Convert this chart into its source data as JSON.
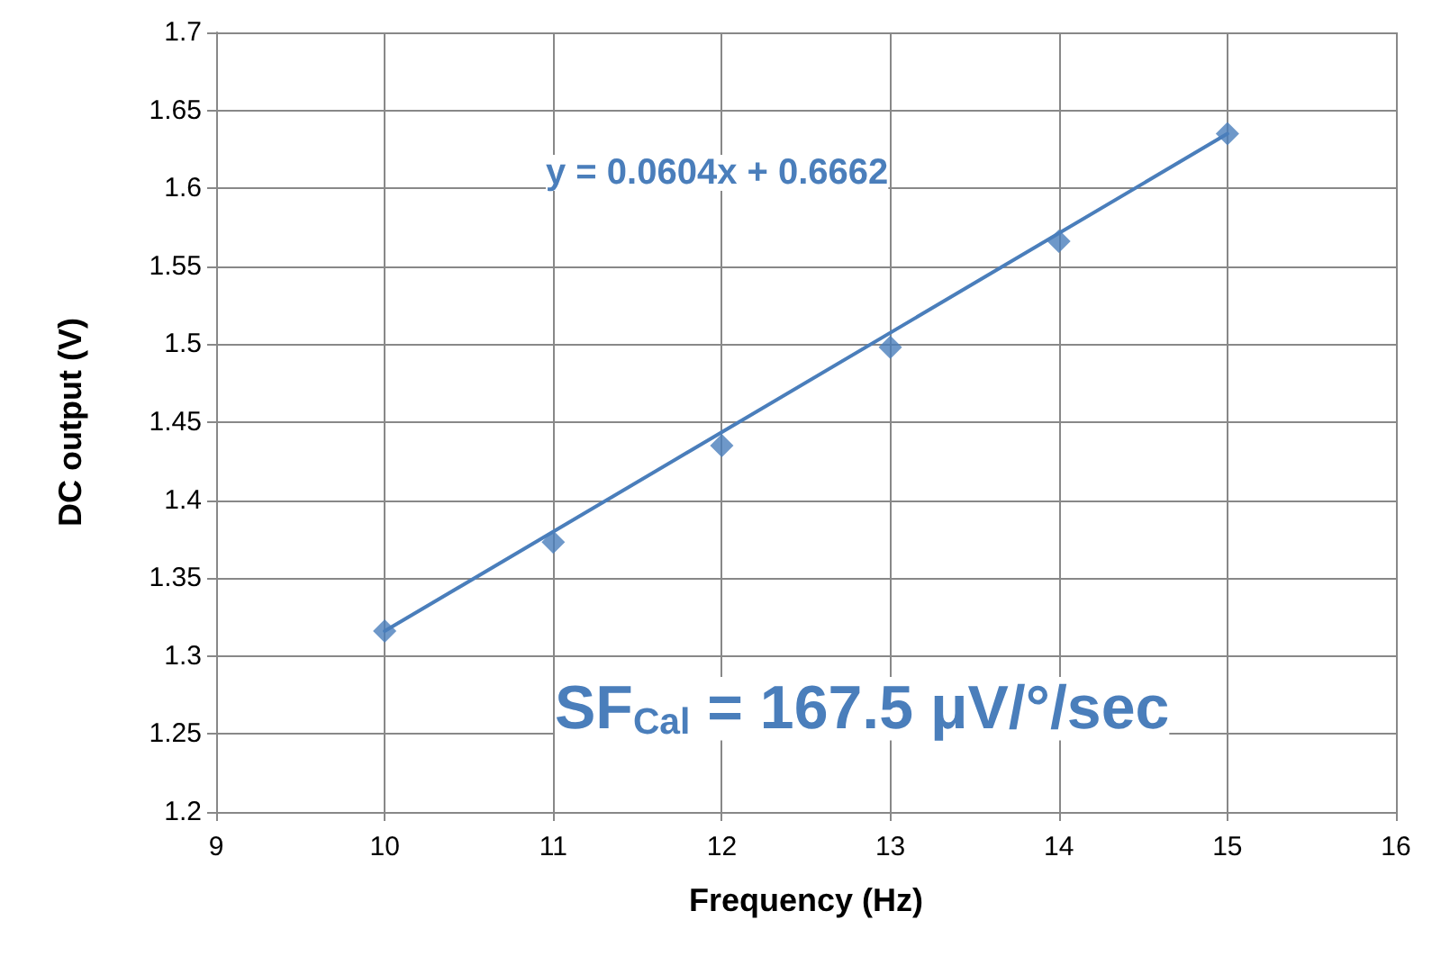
{
  "chart_data": {
    "type": "scatter",
    "xlabel": "Frequency (Hz)",
    "ylabel": "DC output (V)",
    "x": [
      10,
      11,
      12,
      13,
      14,
      15
    ],
    "series": [
      {
        "color": "#4a7ebb",
        "values": [
          1.316,
          1.373,
          1.435,
          1.498,
          1.566,
          1.635
        ],
        "marker": "diamond"
      },
      {
        "type": "line",
        "color": "#4a7ebb",
        "x": [
          10,
          15
        ],
        "values": [
          1.316,
          1.635
        ],
        "marker": "none"
      }
    ],
    "xlim": [
      9,
      16
    ],
    "xticks": [
      9,
      10,
      11,
      12,
      13,
      14,
      15,
      16
    ],
    "ylim": [
      1.2,
      1.7
    ],
    "yticks": [
      1.2,
      1.25,
      1.3,
      1.35,
      1.4,
      1.45,
      1.5,
      1.55,
      1.6,
      1.65,
      1.7
    ],
    "grid": true,
    "annotations": [
      "y = 0.0604x + 0.6662",
      "SF$_{Cal}$ = 167.5 μV/°/sec"
    ]
  }
}
